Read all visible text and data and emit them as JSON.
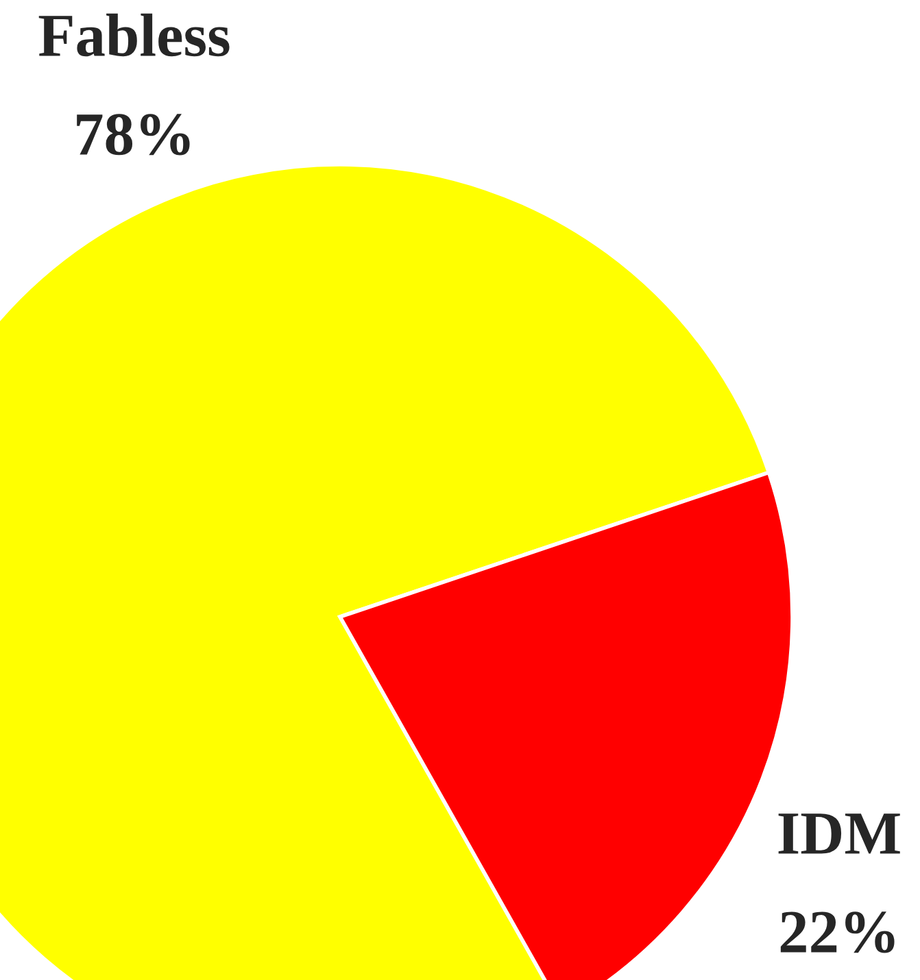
{
  "chart_data": {
    "type": "pie",
    "categories": [
      "Fabless",
      "IDM"
    ],
    "values": [
      78,
      22
    ],
    "value_labels": [
      "78%",
      "22%"
    ],
    "colors": [
      "#ffff00",
      "#ff0000"
    ]
  }
}
